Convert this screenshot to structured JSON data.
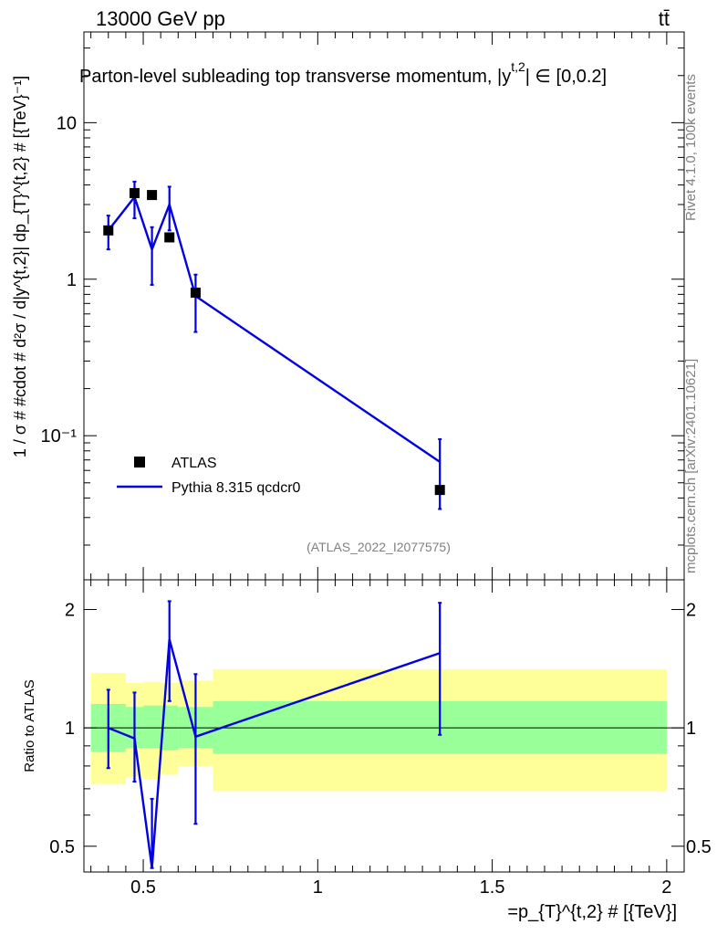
{
  "header": {
    "energy_label": "13000 GeV pp",
    "process_label": "tt̄"
  },
  "side_labels": {
    "rivet": "Rivet 4.1.0,  100k events",
    "mcplots": "mcplots.cern.ch [arXiv:2401.10621]"
  },
  "chart_data": [
    {
      "type": "scatter",
      "panel": "main",
      "title": "Parton-level subleading top transverse momentum, |y",
      "title_sup": "t,2",
      "title_tail": "| ∈ [0,0.2]",
      "ylabel": "1 / σ # #cdot # d²σ / d|y^{t,2}| dp_{T}^{t,2} # [{TeV}⁻¹]",
      "yscale": "log",
      "xlim": [
        0.33,
        2.05
      ],
      "ylim": [
        0.012,
        38
      ],
      "y_ticks": [
        {
          "value": 0.1,
          "label": "10⁻¹"
        },
        {
          "value": 1,
          "label": "1"
        },
        {
          "value": 10,
          "label": "10"
        }
      ],
      "watermark": "(ATLAS_2022_I2077575)",
      "legend": [
        {
          "name": "ATLAS",
          "marker": "square",
          "color": "#000000"
        },
        {
          "name": "Pythia 8.315 qcdcr0",
          "marker": "line",
          "color": "#0000e0"
        }
      ],
      "series": [
        {
          "name": "ATLAS",
          "color": "#000000",
          "x": [
            0.4,
            0.475,
            0.525,
            0.575,
            0.65,
            1.35
          ],
          "y": [
            2.05,
            3.55,
            3.45,
            1.85,
            0.82,
            0.045
          ]
        },
        {
          "name": "Pythia 8.315 qcdcr0",
          "color": "#0000e0",
          "x": [
            0.4,
            0.475,
            0.525,
            0.575,
            0.65,
            1.35
          ],
          "y": [
            2.05,
            3.35,
            1.55,
            3.0,
            0.78,
            0.068
          ],
          "err_low": [
            1.55,
            2.45,
            0.92,
            2.05,
            0.46,
            0.034
          ],
          "err_high": [
            2.55,
            4.2,
            2.15,
            3.9,
            1.07,
            0.095
          ]
        }
      ]
    },
    {
      "type": "line",
      "panel": "ratio",
      "ylabel": "Ratio to ATLAS",
      "xlabel": "=p_{T}^{t,2} # [{TeV}]",
      "yscale": "log",
      "xlim": [
        0.33,
        2.05
      ],
      "ylim": [
        0.43,
        2.38
      ],
      "x_ticks": [
        {
          "value": 0.5,
          "label": "0.5"
        },
        {
          "value": 1,
          "label": "1"
        },
        {
          "value": 1.5,
          "label": "1.5"
        },
        {
          "value": 2,
          "label": "2"
        }
      ],
      "y_ticks": [
        {
          "value": 0.5,
          "label": "0.5"
        },
        {
          "value": 1,
          "label": "1"
        },
        {
          "value": 2,
          "label": "2"
        }
      ],
      "bands": [
        {
          "x0": 0.35,
          "x1": 0.45,
          "inner": [
            0.87,
            1.15
          ],
          "outer": [
            0.72,
            1.38
          ]
        },
        {
          "x0": 0.45,
          "x1": 0.5,
          "inner": [
            0.89,
            1.13
          ],
          "outer": [
            0.75,
            1.3
          ]
        },
        {
          "x0": 0.5,
          "x1": 0.55,
          "inner": [
            0.89,
            1.14
          ],
          "outer": [
            0.74,
            1.31
          ]
        },
        {
          "x0": 0.55,
          "x1": 0.6,
          "inner": [
            0.88,
            1.14
          ],
          "outer": [
            0.76,
            1.3
          ]
        },
        {
          "x0": 0.6,
          "x1": 0.7,
          "inner": [
            0.89,
            1.13
          ],
          "outer": [
            0.8,
            1.32
          ]
        },
        {
          "x0": 0.7,
          "x1": 2.0,
          "inner": [
            0.86,
            1.17
          ],
          "outer": [
            0.69,
            1.41
          ]
        }
      ],
      "series": [
        {
          "name": "Pythia 8.315 qcdcr0",
          "color": "#0000e0",
          "x": [
            0.4,
            0.475,
            0.525,
            0.575,
            0.65,
            1.35
          ],
          "y": [
            1.0,
            0.94,
            0.44,
            1.68,
            0.95,
            1.55
          ],
          "err_low": [
            0.79,
            0.73,
            0.44,
            1.17,
            0.57,
            0.96
          ],
          "err_high": [
            1.25,
            1.23,
            0.66,
            2.1,
            1.37,
            2.08
          ]
        }
      ]
    }
  ]
}
